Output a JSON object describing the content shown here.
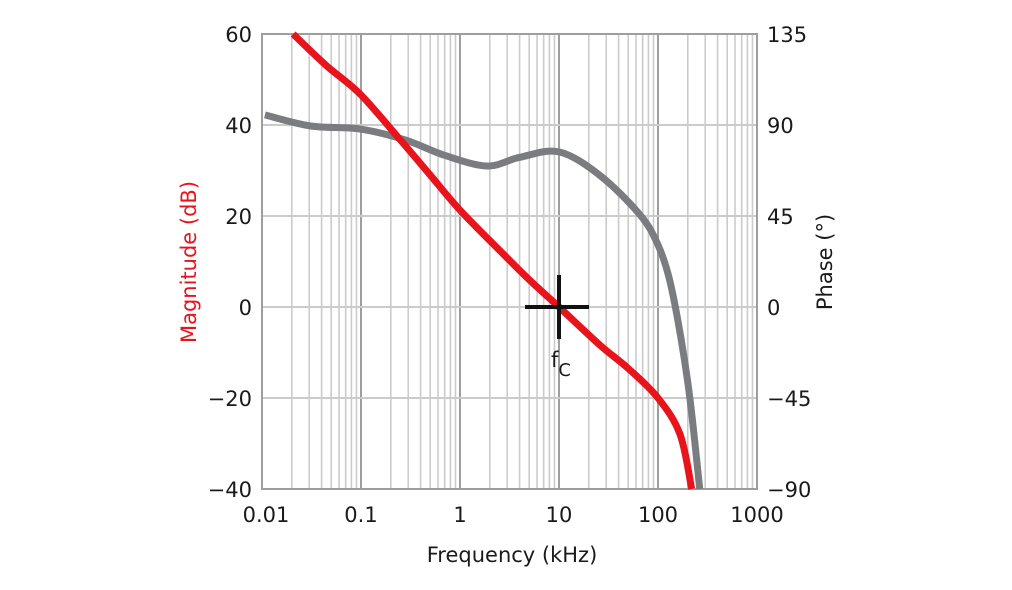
{
  "chart_data": {
    "type": "line",
    "title": "",
    "xlabel": "Frequency (kHz)",
    "ylabel": "Magnitude (dB)",
    "y2label": "Phase (°)",
    "xscale": "log",
    "xlim": [
      0.01,
      1000
    ],
    "ylim": [
      -40,
      60
    ],
    "y2lim": [
      -90,
      135
    ],
    "grid": true,
    "legend": null,
    "x_ticks": [
      "0.01",
      "0.1",
      "1",
      "10",
      "100",
      "1000"
    ],
    "x_tick_values": [
      0.01,
      0.1,
      1,
      10,
      100,
      1000
    ],
    "y_ticks": [
      "60",
      "40",
      "20",
      "0",
      "−20",
      "−40"
    ],
    "y_tick_values": [
      60,
      40,
      20,
      0,
      -20,
      -40
    ],
    "y2_ticks": [
      "135",
      "90",
      "45",
      "0",
      "−45",
      "−90"
    ],
    "y2_tick_values": [
      135,
      90,
      45,
      0,
      -45,
      -90
    ],
    "series": [
      {
        "name": "Magnitude",
        "axis": "left",
        "color": "#e8141c",
        "x": [
          0.0206,
          0.045,
          0.098,
          0.25,
          0.5,
          1.0,
          2.5,
          5.0,
          10,
          26,
          50,
          100,
          167,
          219
        ],
        "values": [
          60,
          53,
          46.8,
          36.7,
          29,
          21.3,
          12.5,
          6,
          0,
          -8.4,
          -13.5,
          -20,
          -28,
          -40
        ]
      },
      {
        "name": "Phase",
        "axis": "right",
        "color": "#7a7c80",
        "x": [
          0.0107,
          0.031,
          0.098,
          0.28,
          0.7,
          1.88,
          4.0,
          10,
          26,
          66,
          100,
          131,
          170,
          211,
          264
        ],
        "values": [
          95,
          89.5,
          88,
          82.6,
          75,
          69.7,
          74,
          76.7,
          65,
          45.5,
          30.7,
          13.4,
          -15,
          -46,
          -90
        ]
      }
    ],
    "annotations": [
      {
        "type": "crosshair",
        "x": 10,
        "y": 0,
        "label": "f",
        "label_sub": "C"
      }
    ]
  },
  "colors": {
    "magnitude": "#e8141c",
    "phase": "#7a7c80",
    "grid_minor": "#cbcbcb",
    "grid_major": "#9e9e9e",
    "frame": "#9e9e9e",
    "text": "#1a1a1a",
    "marker": "#111111"
  }
}
